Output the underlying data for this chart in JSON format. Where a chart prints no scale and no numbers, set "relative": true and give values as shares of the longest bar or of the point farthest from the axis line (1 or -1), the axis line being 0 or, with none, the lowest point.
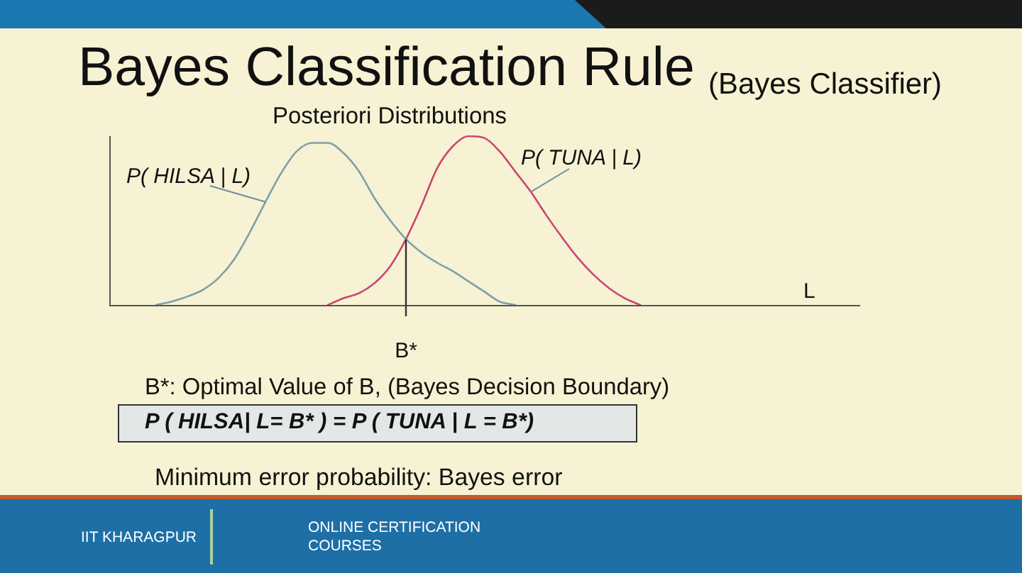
{
  "chart_data": {
    "type": "line",
    "title": "Bayes Classification Rule",
    "subtitle": "(Bayes Classifier)",
    "xlabel": "L",
    "relative": true,
    "categories": [
      null,
      null,
      null,
      null,
      null,
      null,
      null,
      null,
      null,
      null,
      null,
      null,
      null,
      null,
      null,
      null,
      null,
      null,
      null,
      null,
      null,
      null,
      null,
      null,
      null,
      null,
      null,
      null,
      null,
      null,
      null,
      null,
      null,
      null,
      null,
      null,
      null,
      null,
      null,
      null,
      null,
      null,
      null,
      null,
      null,
      null,
      null,
      null,
      null
    ],
    "series": [
      {
        "name": "P( HILSA | L)",
        "color": "#7f9fab",
        "values": [
          null,
          null,
          null,
          0,
          0.02,
          0.05,
          0.09,
          0.16,
          0.27,
          0.43,
          0.61,
          0.78,
          0.91,
          0.96,
          0.96,
          0.9,
          0.79,
          0.63,
          0.5,
          0.39,
          0.31,
          0.25,
          0.2,
          0.14,
          0.08,
          0.02,
          0,
          null,
          null,
          null,
          null,
          null,
          null,
          null,
          null,
          null,
          null,
          null,
          null,
          null,
          null,
          null,
          null,
          null,
          null,
          null,
          null,
          null,
          null
        ]
      },
      {
        "name": "P( TUNA | L)",
        "color": "#cc4473",
        "values": [
          null,
          null,
          null,
          null,
          null,
          null,
          null,
          null,
          null,
          null,
          null,
          null,
          null,
          null,
          0,
          0.04,
          0.07,
          0.13,
          0.23,
          0.39,
          0.59,
          0.81,
          0.94,
          1,
          0.99,
          0.91,
          0.79,
          0.67,
          0.53,
          0.4,
          0.28,
          0.18,
          0.1,
          0.04,
          0,
          null,
          null,
          null,
          null,
          null,
          null,
          null,
          null,
          null,
          null,
          null,
          null,
          null,
          null
        ]
      }
    ],
    "annotations": [
      "Posteriori Distributions",
      "B*",
      "B*: Optimal Value of B, (Bayes Decision Boundary)",
      "P ( HILSA| L= B* ) = P ( TUNA | L = B*)",
      "Minimum error probability: Bayes error",
      "IIT KHARAGPUR",
      "ONLINE CERTIFICATION COURSES"
    ]
  }
}
